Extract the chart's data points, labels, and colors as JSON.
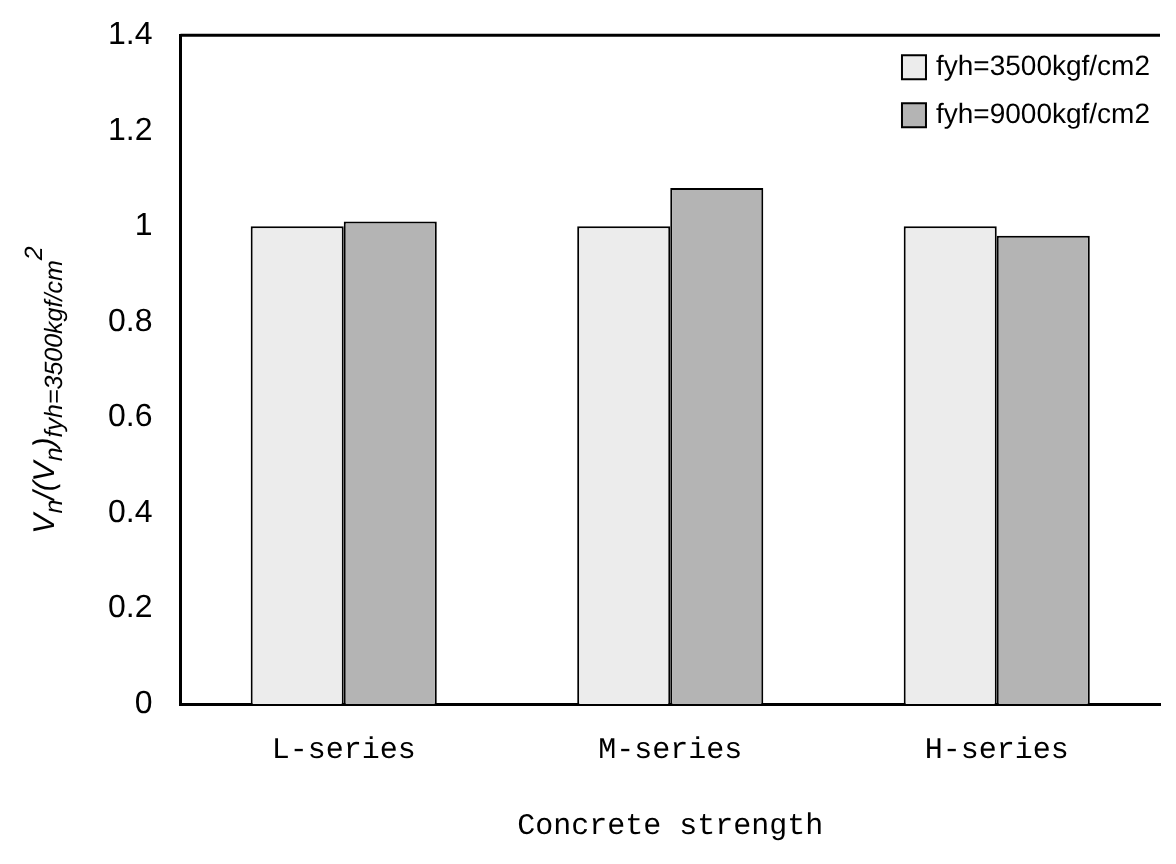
{
  "chart_data": {
    "type": "bar",
    "xlabel": "Concrete strength",
    "ylabel": "V$_{n}$/(V$_{n}$)$_{fyh=3500kgf/cm}$$^{2}$",
    "categories": [
      "L-series",
      "M-series",
      "H-series"
    ],
    "series": [
      {
        "name": "fyh=3500kgf/cm2",
        "color": "#ececec",
        "values": [
          1.0,
          1.0,
          1.0
        ]
      },
      {
        "name": "fyh=9000kgf/cm2",
        "color": "#b4b4b4",
        "values": [
          1.01,
          1.08,
          0.98
        ]
      }
    ],
    "ylim": [
      0,
      1.4
    ],
    "yticks": [
      0,
      0.2,
      0.4,
      0.6,
      0.8,
      1,
      1.2,
      1.4
    ],
    "grid": false,
    "legend": "top right"
  }
}
